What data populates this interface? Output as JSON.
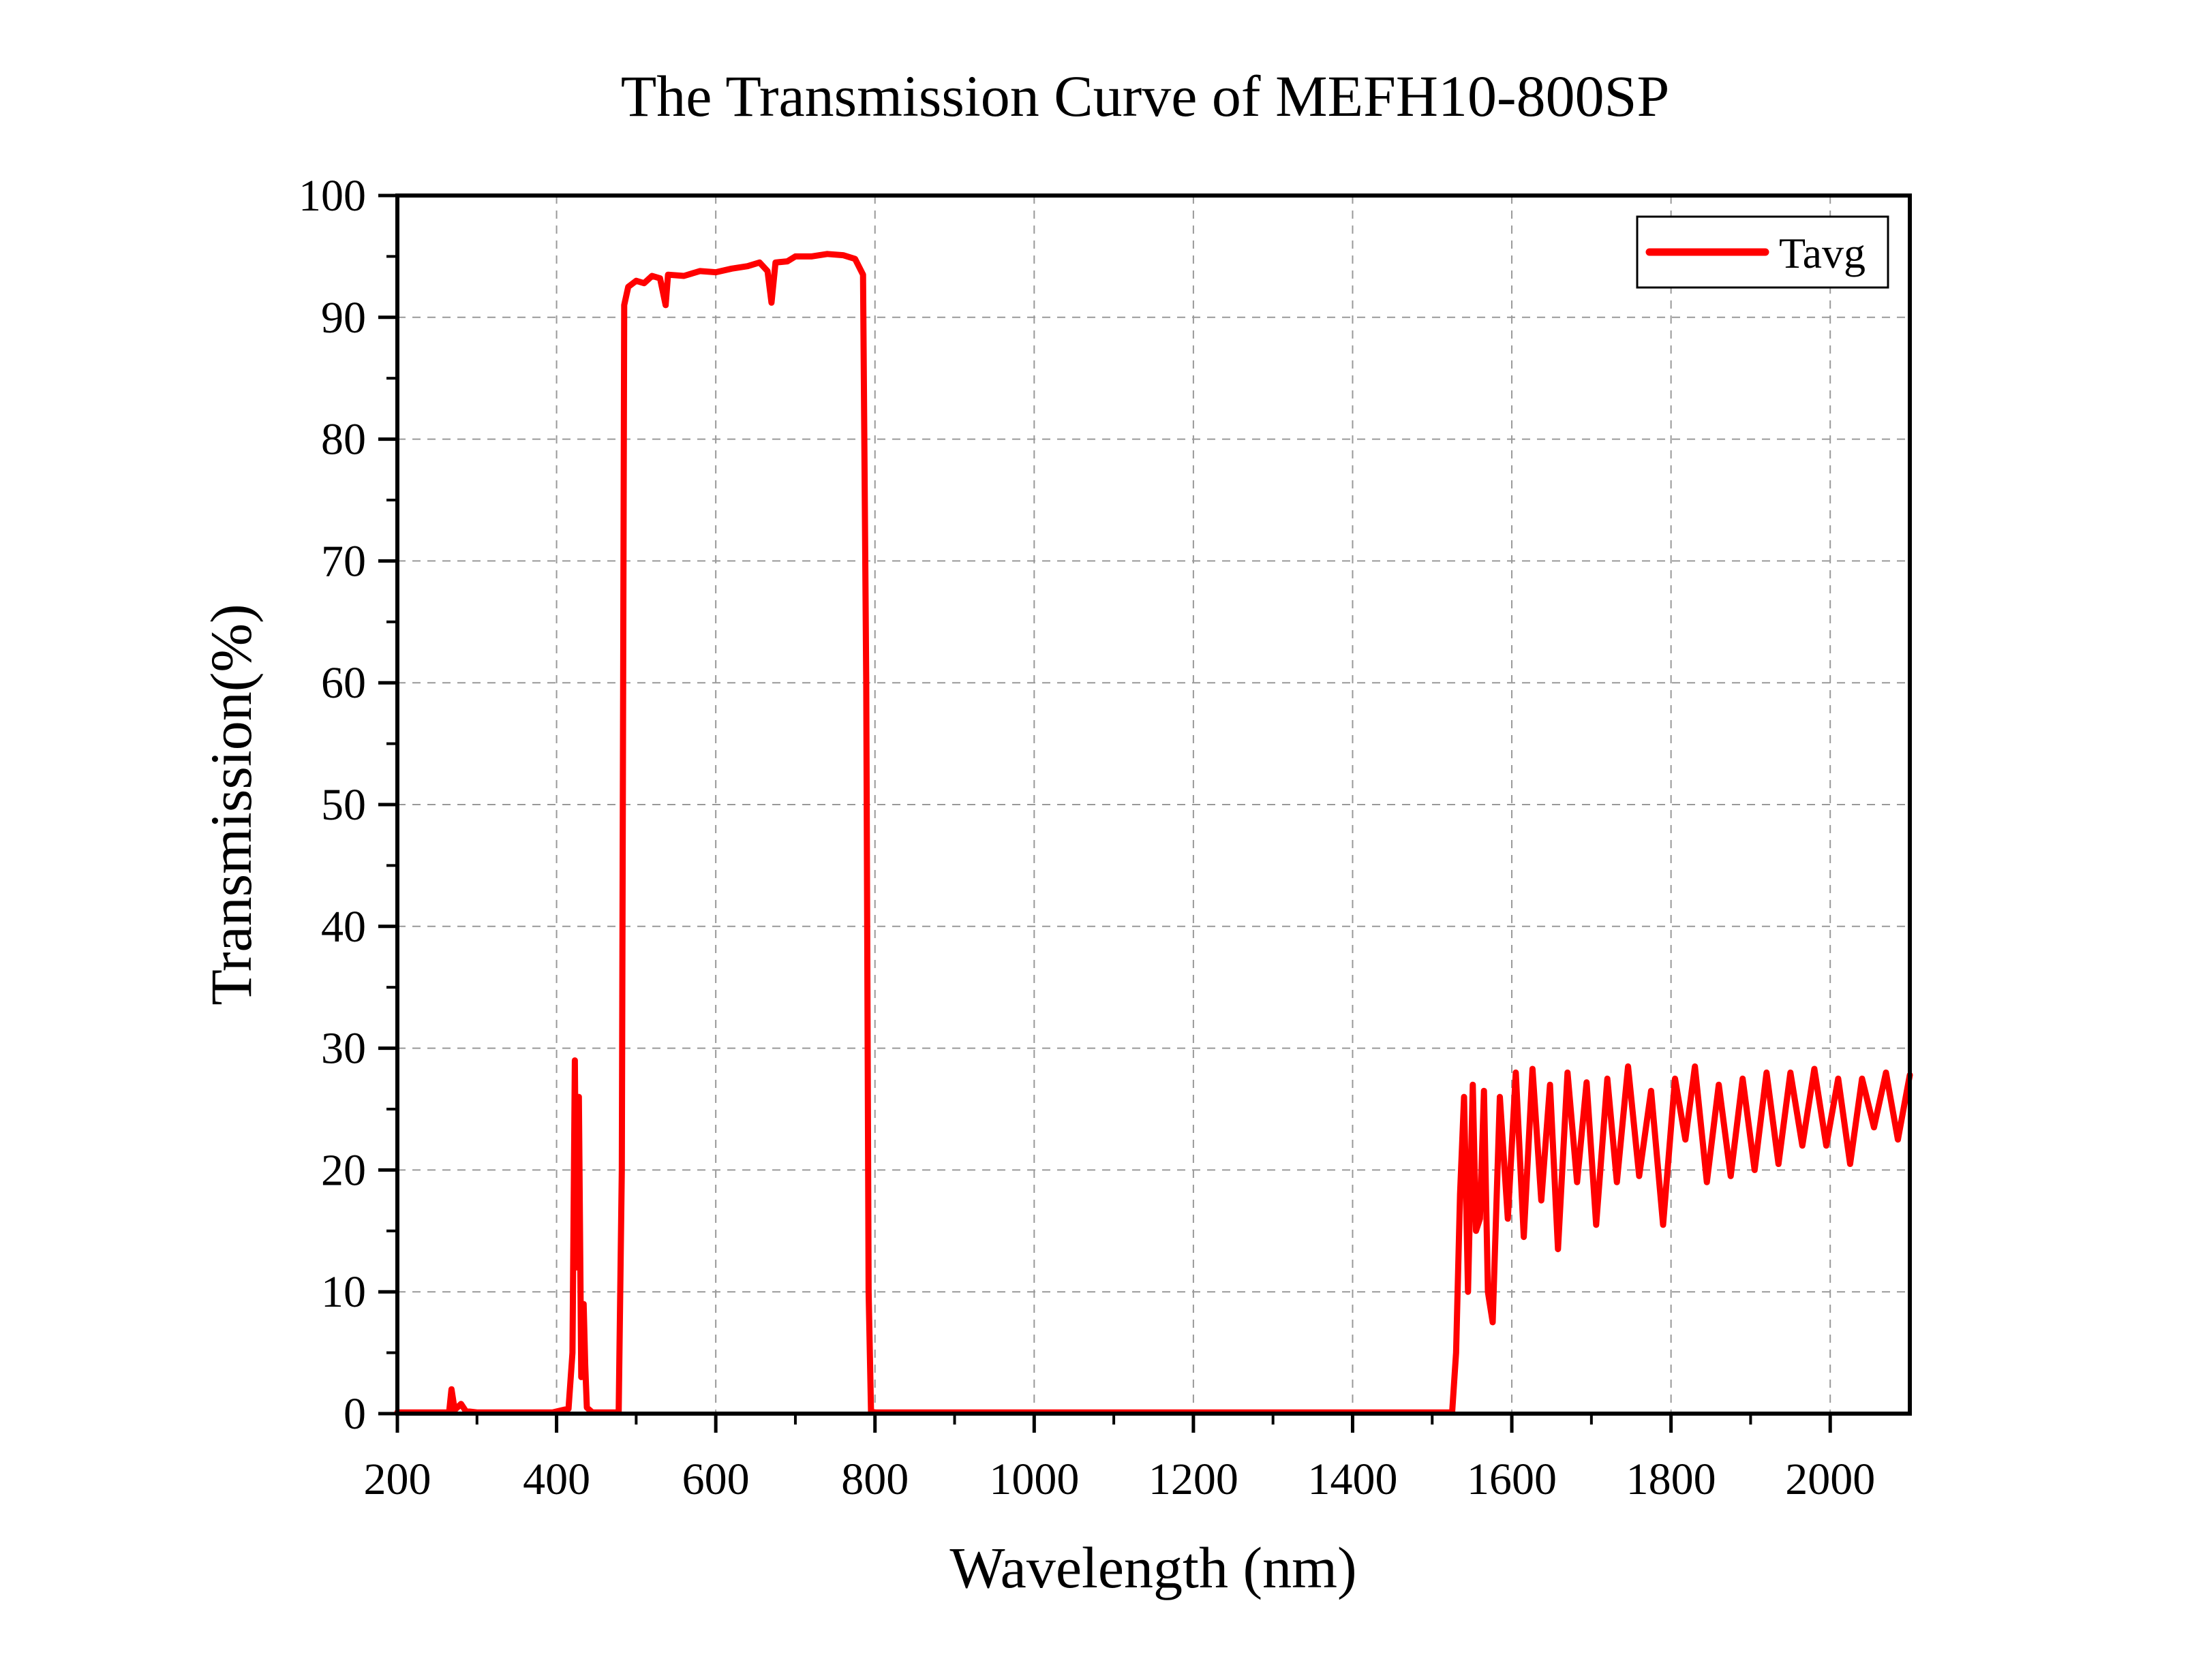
{
  "chart_data": {
    "type": "line",
    "title": "The Transmission Curve of MEFH10-800SP",
    "xlabel": "Wavelength (nm)",
    "ylabel": "Transmission(%)",
    "xlim": [
      200,
      2100
    ],
    "ylim": [
      0,
      100
    ],
    "x_ticks": [
      200,
      400,
      600,
      800,
      1000,
      1200,
      1400,
      1600,
      1800,
      2000
    ],
    "y_ticks": [
      0,
      10,
      20,
      30,
      40,
      50,
      60,
      70,
      80,
      90,
      100
    ],
    "grid": true,
    "legend_position": "top-right",
    "colors": {
      "series": "#ff0000",
      "grid": "#999999",
      "axis": "#000000"
    },
    "series": [
      {
        "name": "Tavg",
        "points": [
          [
            200,
            0.1
          ],
          [
            265,
            0.1
          ],
          [
            268,
            2
          ],
          [
            272,
            0.3
          ],
          [
            280,
            0.8
          ],
          [
            286,
            0.2
          ],
          [
            300,
            0.1
          ],
          [
            395,
            0.1
          ],
          [
            415,
            0.4
          ],
          [
            420,
            5
          ],
          [
            423,
            29
          ],
          [
            425,
            12
          ],
          [
            428,
            26
          ],
          [
            431,
            3
          ],
          [
            434,
            9
          ],
          [
            436,
            4
          ],
          [
            438,
            0.5
          ],
          [
            445,
            0.1
          ],
          [
            478,
            0.1
          ],
          [
            482,
            20
          ],
          [
            485,
            91
          ],
          [
            490,
            92.5
          ],
          [
            500,
            93
          ],
          [
            510,
            92.8
          ],
          [
            520,
            93.4
          ],
          [
            530,
            93.2
          ],
          [
            537,
            91
          ],
          [
            540,
            93.5
          ],
          [
            560,
            93.4
          ],
          [
            580,
            93.8
          ],
          [
            600,
            93.7
          ],
          [
            620,
            94
          ],
          [
            640,
            94.2
          ],
          [
            655,
            94.5
          ],
          [
            665,
            93.8
          ],
          [
            670,
            91.2
          ],
          [
            675,
            94.5
          ],
          [
            690,
            94.6
          ],
          [
            700,
            95
          ],
          [
            720,
            95
          ],
          [
            740,
            95.2
          ],
          [
            760,
            95.1
          ],
          [
            775,
            94.8
          ],
          [
            785,
            93.5
          ],
          [
            789,
            60
          ],
          [
            792,
            10
          ],
          [
            795,
            0.2
          ],
          [
            800,
            0.1
          ],
          [
            1400,
            0.1
          ],
          [
            1525,
            0.1
          ],
          [
            1530,
            5
          ],
          [
            1535,
            18
          ],
          [
            1540,
            26
          ],
          [
            1545,
            10
          ],
          [
            1551,
            27
          ],
          [
            1555,
            15
          ],
          [
            1560,
            16
          ],
          [
            1565,
            26.5
          ],
          [
            1570,
            10
          ],
          [
            1576,
            7.5
          ],
          [
            1585,
            26
          ],
          [
            1595,
            16
          ],
          [
            1605,
            28
          ],
          [
            1615,
            14.5
          ],
          [
            1626,
            28.3
          ],
          [
            1637,
            17.5
          ],
          [
            1648,
            27
          ],
          [
            1658,
            13.5
          ],
          [
            1670,
            28
          ],
          [
            1682,
            19
          ],
          [
            1694,
            27.2
          ],
          [
            1706,
            15.5
          ],
          [
            1720,
            27.5
          ],
          [
            1732,
            19
          ],
          [
            1746,
            28.5
          ],
          [
            1760,
            19.5
          ],
          [
            1775,
            26.5
          ],
          [
            1790,
            15.5
          ],
          [
            1805,
            27.5
          ],
          [
            1818,
            22.5
          ],
          [
            1830,
            28.5
          ],
          [
            1845,
            19
          ],
          [
            1860,
            27
          ],
          [
            1875,
            19.5
          ],
          [
            1890,
            27.5
          ],
          [
            1905,
            20
          ],
          [
            1920,
            28
          ],
          [
            1935,
            20.5
          ],
          [
            1950,
            28
          ],
          [
            1965,
            22
          ],
          [
            1980,
            28.3
          ],
          [
            1995,
            22
          ],
          [
            2010,
            27.5
          ],
          [
            2025,
            20.5
          ],
          [
            2040,
            27.5
          ],
          [
            2055,
            23.5
          ],
          [
            2070,
            28
          ],
          [
            2085,
            22.5
          ],
          [
            2100,
            27.8
          ]
        ]
      }
    ]
  }
}
